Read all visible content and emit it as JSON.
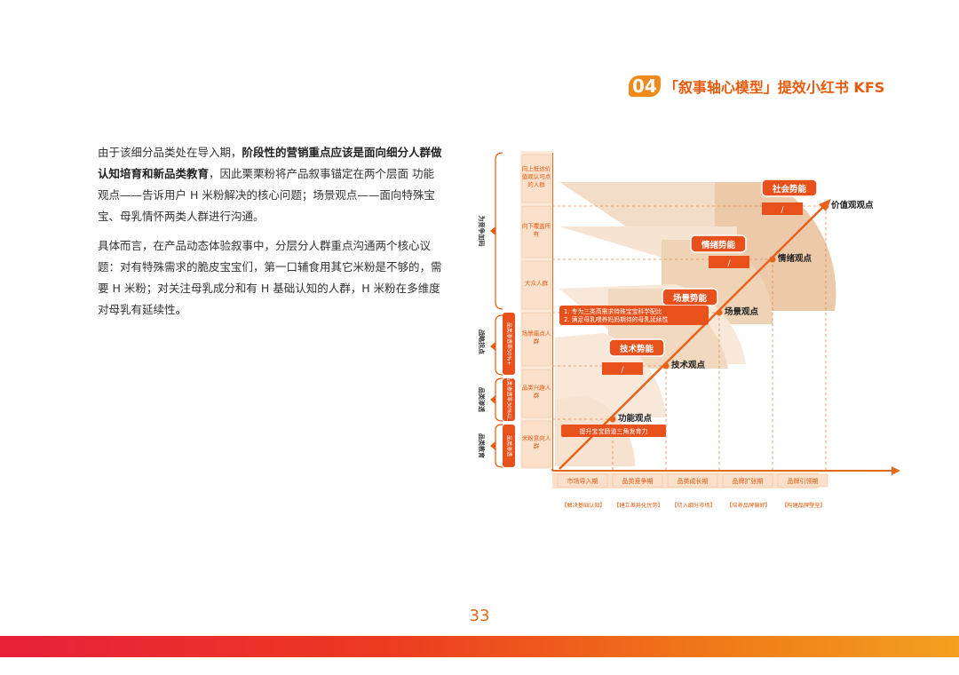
{
  "header": {
    "number": "04",
    "title": "「叙事轴心模型」提效小红书 KFS"
  },
  "paragraph1": {
    "segments": [
      {
        "text": "由于该细分品类处在导入期，",
        "bold": false
      },
      {
        "text": "阶段性的营销重点应该是面向细分人群做认知培育和新品类教育",
        "bold": true
      },
      {
        "text": "，因此栗栗粉将产品叙事锚定在两个层面 功能观点——告诉用户 H 米粉解决的核心问题；场景观点——面向特殊宝宝、母乳情怀两类人群进行沟通。",
        "bold": false
      }
    ]
  },
  "paragraph2": "具体而言，在产品动态体验叙事中，分层分人群重点沟通两个核心议题：对有特殊需求的脆皮宝宝们，第一口辅食用其它米粉是不够的，需要 H 米粉；对关注母乳成分和有 H 基础认知的人群，H 米粉在多维度对母乳有延续性。",
  "diagram": {
    "outer_groups": [
      {
        "label": "为竞争加码",
        "level": "top"
      },
      {
        "label": "战略拐点",
        "level": "mid"
      },
      {
        "label": "品类渗透",
        "level": "mid2"
      },
      {
        "label": "品类教育",
        "level": "bottom"
      }
    ],
    "inner_badges": [
      {
        "label": "品类渗透率50%+"
      },
      {
        "label": "品类渗透率30%以上"
      },
      {
        "label": "品类渗透"
      }
    ],
    "audience_boxes": [
      {
        "label": "向上抵达价值观认可点的人群"
      },
      {
        "label": "向下覆盖所有"
      },
      {
        "label": "大众人群"
      },
      {
        "label": "场景痛点人群"
      },
      {
        "label": "品类兴趣人群"
      },
      {
        "label": "米粉意向人群"
      }
    ],
    "stages": [
      {
        "label": "市场导入期"
      },
      {
        "label": "品类竞争期"
      },
      {
        "label": "品类成长期"
      },
      {
        "label": "品牌扩张期"
      },
      {
        "label": "品牌引领期"
      }
    ],
    "stage_goals": [
      {
        "label": "【解决基础认知】"
      },
      {
        "label": "【建立差异化优势】"
      },
      {
        "label": "【切入细分市场】"
      },
      {
        "label": "【培养品牌偏好】"
      },
      {
        "label": "【构建品牌壁垒】"
      }
    ],
    "viewpoints": [
      {
        "label": "功能观点"
      },
      {
        "label": "技术观点"
      },
      {
        "label": "场景观点"
      },
      {
        "label": "情绪观点"
      },
      {
        "label": "价值观观点"
      }
    ],
    "potentials": [
      {
        "label": "技术势能"
      },
      {
        "label": "场景势能"
      },
      {
        "label": "情绪势能"
      },
      {
        "label": "社会势能"
      }
    ],
    "slash_box": "/",
    "function_note": "提升宝宝肠道三角发育力",
    "scene_notes": [
      "1. 专为三类高需求特殊宝宝科学配比",
      "2. 满足母乳喂养妈妈期待的母乳延续性"
    ]
  },
  "page_number": "33",
  "colors": {
    "accent": "#e85a0c",
    "badge": "#e8501c",
    "fan": "#f3d9c2"
  }
}
